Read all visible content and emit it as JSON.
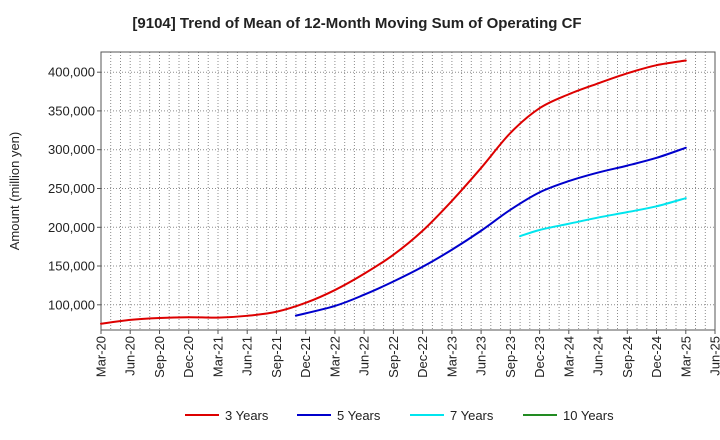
{
  "chart_data": {
    "type": "line",
    "title": "[9104]  Trend of Mean of 12-Month Moving Sum of Operating CF",
    "ylabel": "Amount (million yen)",
    "xlim": [
      "2020-03",
      "2025-06"
    ],
    "ylim": [
      67500,
      426000
    ],
    "grid": true,
    "legend_position": "bottom",
    "y_ticks": [
      100000,
      150000,
      200000,
      250000,
      300000,
      350000,
      400000
    ],
    "y_tick_labels": [
      "100,000",
      "150,000",
      "200,000",
      "250,000",
      "300,000",
      "350,000",
      "400,000"
    ],
    "x_ticks": [
      {
        "date": "2020-03",
        "label": "Mar-20"
      },
      {
        "date": "2020-06",
        "label": "Jun-20"
      },
      {
        "date": "2020-09",
        "label": "Sep-20"
      },
      {
        "date": "2020-12",
        "label": "Dec-20"
      },
      {
        "date": "2021-03",
        "label": "Mar-21"
      },
      {
        "date": "2021-06",
        "label": "Jun-21"
      },
      {
        "date": "2021-09",
        "label": "Sep-21"
      },
      {
        "date": "2021-12",
        "label": "Dec-21"
      },
      {
        "date": "2022-03",
        "label": "Mar-22"
      },
      {
        "date": "2022-06",
        "label": "Jun-22"
      },
      {
        "date": "2022-09",
        "label": "Sep-22"
      },
      {
        "date": "2022-12",
        "label": "Dec-22"
      },
      {
        "date": "2023-03",
        "label": "Mar-23"
      },
      {
        "date": "2023-06",
        "label": "Jun-23"
      },
      {
        "date": "2023-09",
        "label": "Sep-23"
      },
      {
        "date": "2023-12",
        "label": "Dec-23"
      },
      {
        "date": "2024-03",
        "label": "Mar-24"
      },
      {
        "date": "2024-06",
        "label": "Jun-24"
      },
      {
        "date": "2024-09",
        "label": "Sep-24"
      },
      {
        "date": "2024-12",
        "label": "Dec-24"
      },
      {
        "date": "2025-03",
        "label": "Mar-25"
      },
      {
        "date": "2025-06",
        "label": "Jun-25"
      }
    ],
    "series": [
      {
        "name": "3 Years",
        "color": "#dd0000",
        "points": [
          {
            "date": "2020-03",
            "value": 75500
          },
          {
            "date": "2020-06",
            "value": 80500
          },
          {
            "date": "2020-09",
            "value": 83000
          },
          {
            "date": "2020-12",
            "value": 84000
          },
          {
            "date": "2021-03",
            "value": 83500
          },
          {
            "date": "2021-06",
            "value": 85800
          },
          {
            "date": "2021-09",
            "value": 91000
          },
          {
            "date": "2021-12",
            "value": 102500
          },
          {
            "date": "2022-03",
            "value": 119000
          },
          {
            "date": "2022-06",
            "value": 140000
          },
          {
            "date": "2022-09",
            "value": 164500
          },
          {
            "date": "2022-12",
            "value": 195500
          },
          {
            "date": "2023-03",
            "value": 234000
          },
          {
            "date": "2023-06",
            "value": 276500
          },
          {
            "date": "2023-09",
            "value": 321500
          },
          {
            "date": "2023-12",
            "value": 353500
          },
          {
            "date": "2024-03",
            "value": 371500
          },
          {
            "date": "2024-06",
            "value": 385500
          },
          {
            "date": "2024-09",
            "value": 398500
          },
          {
            "date": "2024-12",
            "value": 409000
          },
          {
            "date": "2025-03",
            "value": 415000
          }
        ]
      },
      {
        "name": "5 Years",
        "color": "#0000cc",
        "points": [
          {
            "date": "2021-11",
            "value": 86000
          },
          {
            "date": "2022-03",
            "value": 98500
          },
          {
            "date": "2022-06",
            "value": 113000
          },
          {
            "date": "2022-09",
            "value": 130000
          },
          {
            "date": "2022-12",
            "value": 149000
          },
          {
            "date": "2023-03",
            "value": 171000
          },
          {
            "date": "2023-06",
            "value": 195500
          },
          {
            "date": "2023-09",
            "value": 222500
          },
          {
            "date": "2023-12",
            "value": 245000
          },
          {
            "date": "2024-03",
            "value": 259500
          },
          {
            "date": "2024-06",
            "value": 270500
          },
          {
            "date": "2024-09",
            "value": 279500
          },
          {
            "date": "2024-12",
            "value": 289500
          },
          {
            "date": "2025-03",
            "value": 302500
          }
        ]
      },
      {
        "name": "7 Years",
        "color": "#00e5ee",
        "points": [
          {
            "date": "2023-10",
            "value": 188500
          },
          {
            "date": "2023-12",
            "value": 196500
          },
          {
            "date": "2024-03",
            "value": 204500
          },
          {
            "date": "2024-06",
            "value": 212500
          },
          {
            "date": "2024-09",
            "value": 219500
          },
          {
            "date": "2024-12",
            "value": 227000
          },
          {
            "date": "2025-03",
            "value": 237500
          }
        ]
      },
      {
        "name": "10 Years",
        "color": "#228b22",
        "points": []
      }
    ]
  }
}
